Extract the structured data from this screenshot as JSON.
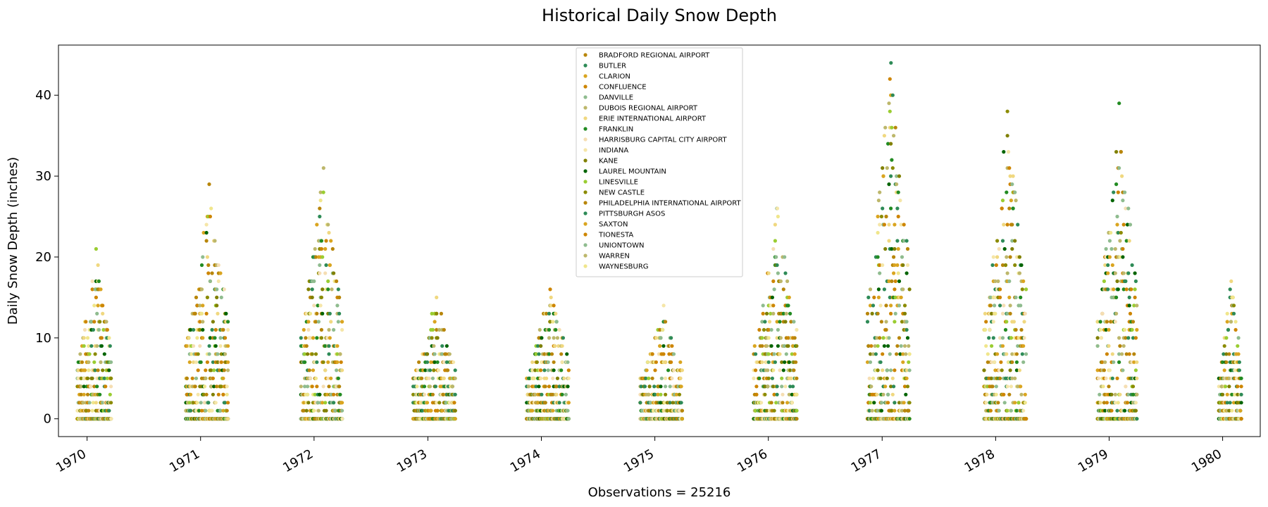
{
  "chart_data": {
    "type": "scatter",
    "title": "Historical Daily Snow Depth",
    "xlabel": "Observations = 25216",
    "ylabel": "Daily Snow Depth (inches)",
    "x_type": "date",
    "xlim": [
      "1969-10-01",
      "1980-05-01"
    ],
    "ylim": [
      -2.2,
      46.2
    ],
    "x_ticks": [
      {
        "date": "1970-01-01",
        "label": "1970"
      },
      {
        "date": "1971-01-01",
        "label": "1971"
      },
      {
        "date": "1972-01-01",
        "label": "1972"
      },
      {
        "date": "1973-01-01",
        "label": "1973"
      },
      {
        "date": "1974-01-01",
        "label": "1974"
      },
      {
        "date": "1975-01-01",
        "label": "1975"
      },
      {
        "date": "1976-01-01",
        "label": "1976"
      },
      {
        "date": "1977-01-01",
        "label": "1977"
      },
      {
        "date": "1978-01-01",
        "label": "1978"
      },
      {
        "date": "1979-01-01",
        "label": "1979"
      },
      {
        "date": "1980-01-01",
        "label": "1980"
      }
    ],
    "y_ticks": [
      0,
      10,
      20,
      30,
      40
    ],
    "grid": false,
    "legend_position": "upper-center",
    "series": [
      {
        "name": "BRADFORD REGIONAL AIRPORT",
        "color": "#b8860b"
      },
      {
        "name": "BUTLER",
        "color": "#2e8b57"
      },
      {
        "name": "CLARION",
        "color": "#daa520"
      },
      {
        "name": "CONFLUENCE",
        "color": "#cd8500"
      },
      {
        "name": "DANVILLE",
        "color": "#8fbc8f"
      },
      {
        "name": "DUBOIS REGIONAL AIRPORT",
        "color": "#bdb76b"
      },
      {
        "name": "ERIE INTERNATIONAL AIRPORT",
        "color": "#f0d880"
      },
      {
        "name": "FRANKLIN",
        "color": "#228b22"
      },
      {
        "name": "HARRISBURG CAPITAL CITY AIRPORT",
        "color": "#f5deb3"
      },
      {
        "name": "INDIANA",
        "color": "#f5e6a8"
      },
      {
        "name": "KANE",
        "color": "#808000"
      },
      {
        "name": "LAUREL MOUNTAIN",
        "color": "#006400"
      },
      {
        "name": "LINESVILLE",
        "color": "#9acd32"
      },
      {
        "name": "NEW CASTLE",
        "color": "#8b8b00"
      },
      {
        "name": "PHILADELPHIA INTERNATIONAL AIRPORT",
        "color": "#b8860b"
      },
      {
        "name": "PITTSBURGH ASOS",
        "color": "#2e8b57"
      },
      {
        "name": "SAXTON",
        "color": "#daa520"
      },
      {
        "name": "TIONESTA",
        "color": "#cd8500"
      },
      {
        "name": "UNIONTOWN",
        "color": "#8fbc8f"
      },
      {
        "name": "WARREN",
        "color": "#bdb76b"
      },
      {
        "name": "WAYNESBURG",
        "color": "#f0e68c"
      }
    ],
    "winter_seasons": [
      {
        "start": "1969-12-01",
        "end": "1970-03-20",
        "max": 21
      },
      {
        "start": "1970-11-15",
        "end": "1971-03-31",
        "max": 29
      },
      {
        "start": "1971-11-20",
        "end": "1972-03-31",
        "max": 31
      },
      {
        "start": "1972-11-15",
        "end": "1973-03-31",
        "max": 15
      },
      {
        "start": "1973-11-15",
        "end": "1974-04-01",
        "max": 16
      },
      {
        "start": "1974-11-15",
        "end": "1975-04-01",
        "max": 14
      },
      {
        "start": "1975-11-15",
        "end": "1976-04-01",
        "max": 26
      },
      {
        "start": "1976-11-15",
        "end": "1977-04-01",
        "max": 44
      },
      {
        "start": "1977-11-25",
        "end": "1978-04-10",
        "max": 38
      },
      {
        "start": "1978-11-25",
        "end": "1979-03-31",
        "max": 39
      },
      {
        "start": "1979-12-20",
        "end": "1980-03-01",
        "max": 17
      }
    ]
  }
}
